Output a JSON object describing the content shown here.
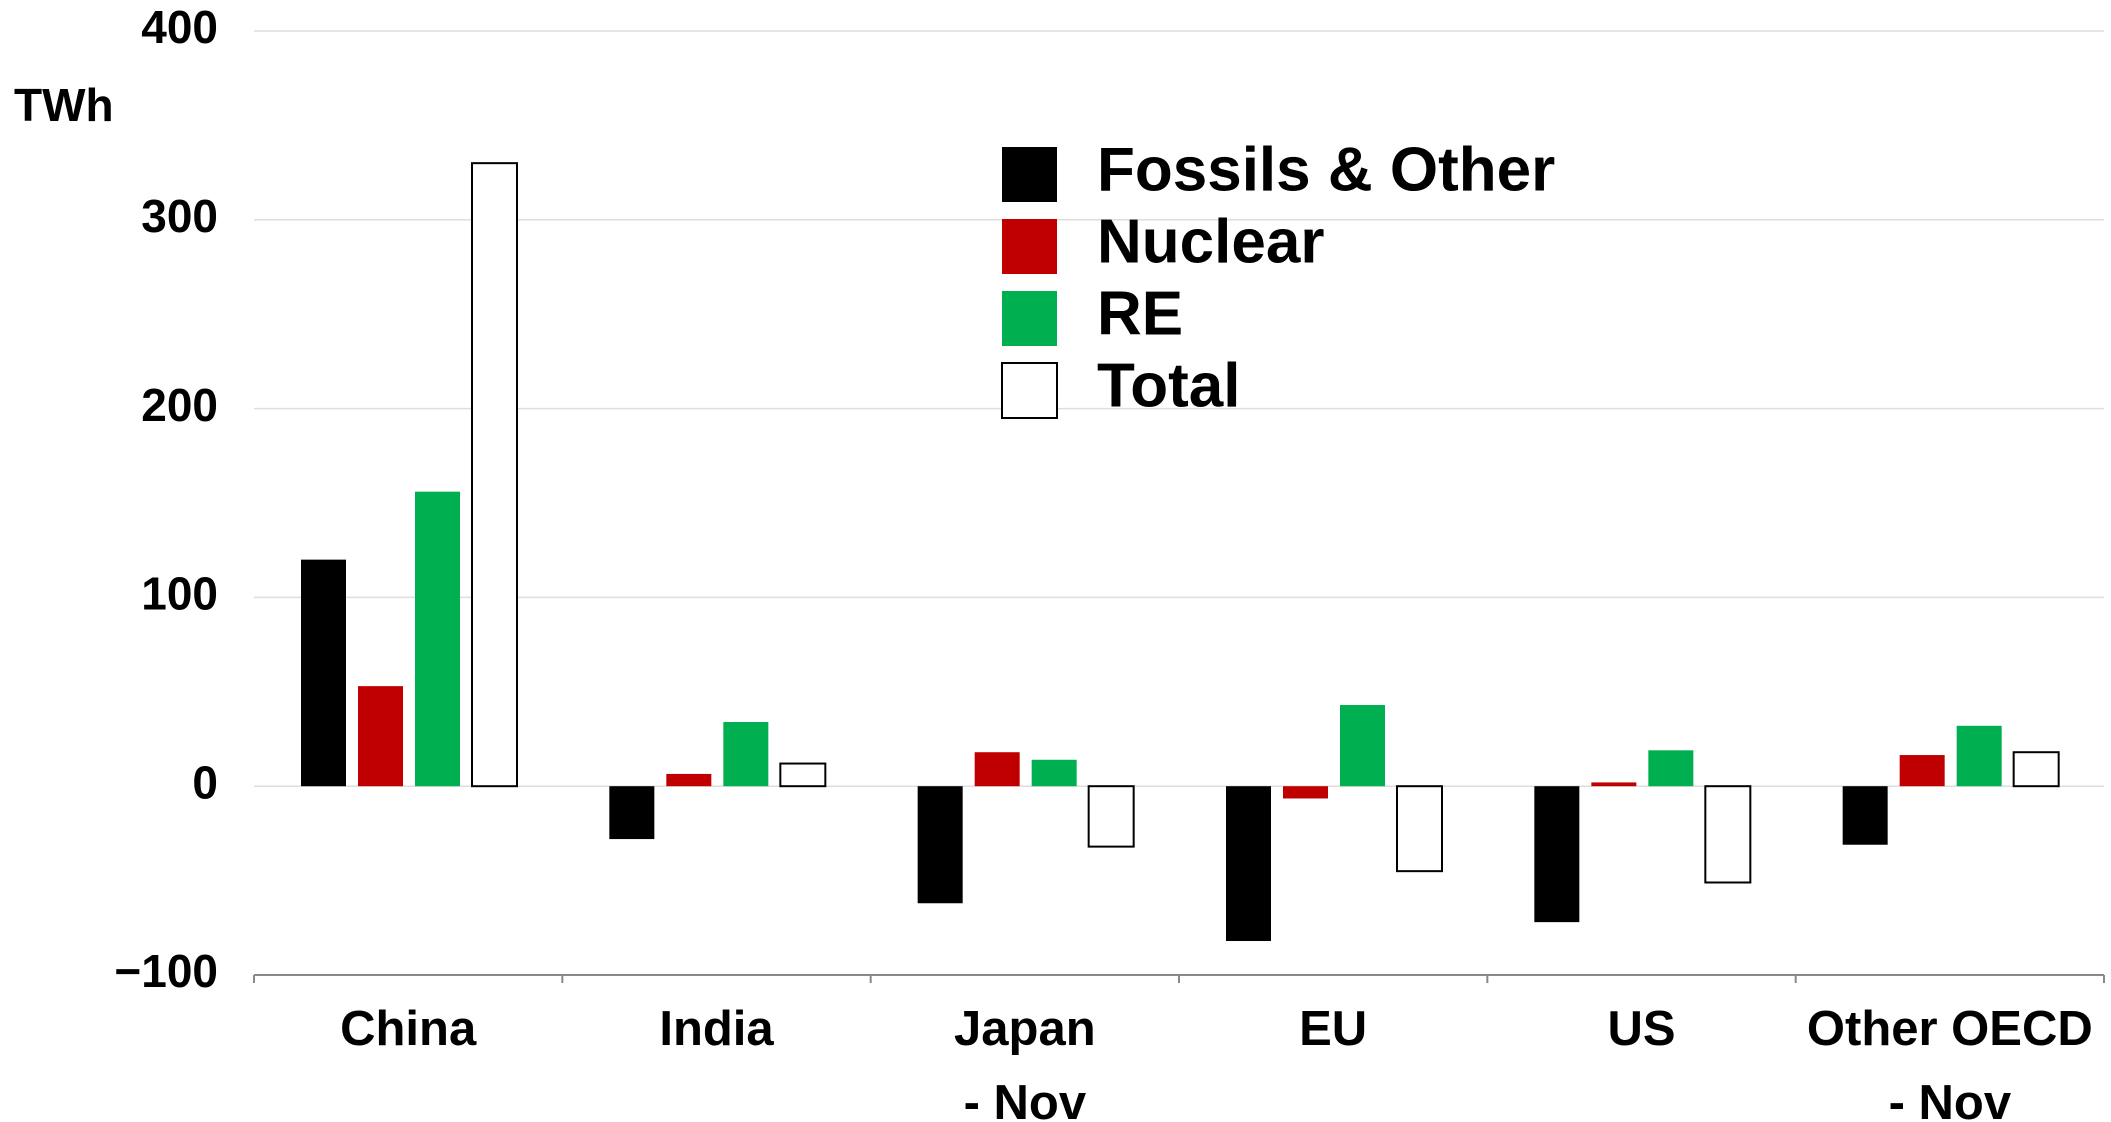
{
  "chart_data": {
    "type": "bar",
    "y_label": "TWh",
    "categories": [
      "China",
      "India",
      "Japan\n- Nov",
      "EU",
      "US",
      "Other OECD\n- Nov"
    ],
    "series": [
      {
        "name": "Fossils & Other",
        "color": "#000000",
        "values": [
          120,
          -28,
          -62,
          -82,
          -72,
          -31
        ]
      },
      {
        "name": "Nuclear",
        "color": "#c00000",
        "values": [
          53,
          6.5,
          18,
          -6.5,
          2,
          16.5
        ]
      },
      {
        "name": "RE",
        "color": "#00b050",
        "values": [
          156,
          34,
          14,
          43,
          19,
          32
        ]
      },
      {
        "name": "Total",
        "color": "#ffffff",
        "values": [
          330,
          12,
          -32,
          -45,
          -51,
          18
        ]
      }
    ],
    "ylim": [
      -100,
      400
    ],
    "yticks": [
      {
        "value": -100,
        "label": "−100"
      },
      0,
      100,
      200,
      300,
      400
    ],
    "grid": true
  }
}
